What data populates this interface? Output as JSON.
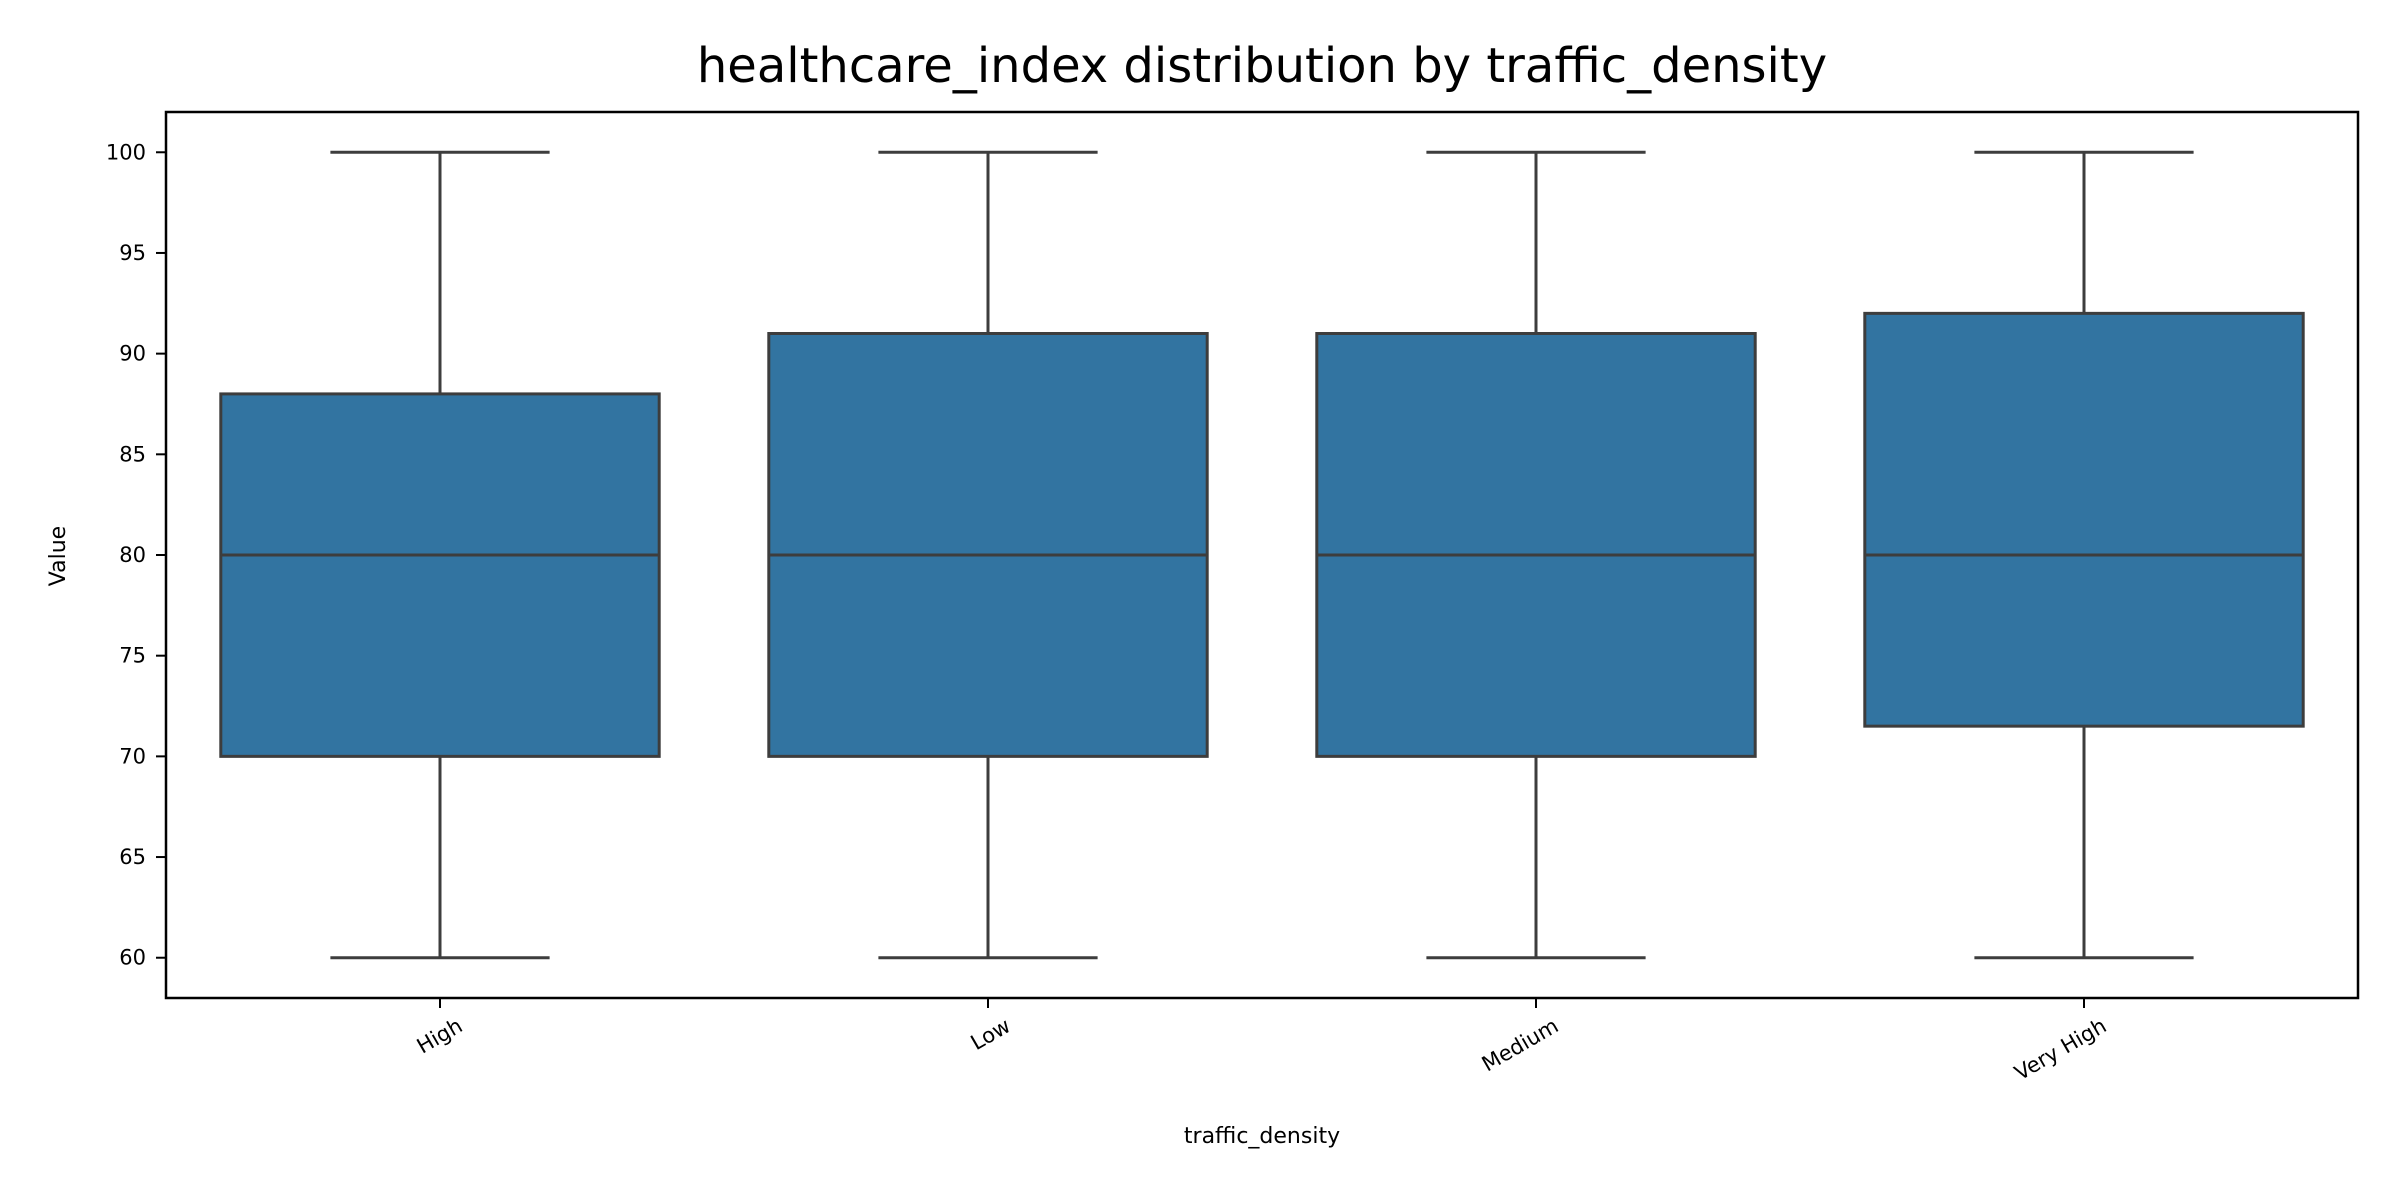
{
  "chart_data": {
    "type": "box",
    "title": "healthcare_index distribution by traffic_density",
    "xlabel": "traffic_density",
    "ylabel": "Value",
    "ylim": [
      58,
      102
    ],
    "yticks": [
      60,
      65,
      70,
      75,
      80,
      85,
      90,
      95,
      100
    ],
    "categories": [
      "High",
      "Low",
      "Medium",
      "Very High"
    ],
    "boxes": [
      {
        "category": "High",
        "whisker_low": 60,
        "q1": 70,
        "median": 80,
        "q3": 88,
        "whisker_high": 100
      },
      {
        "category": "Low",
        "whisker_low": 60,
        "q1": 70,
        "median": 80,
        "q3": 91,
        "whisker_high": 100
      },
      {
        "category": "Medium",
        "whisker_low": 60,
        "q1": 70,
        "median": 80,
        "q3": 91,
        "whisker_high": 100
      },
      {
        "category": "Very High",
        "whisker_low": 60,
        "q1": 71.5,
        "median": 80,
        "q3": 92,
        "whisker_high": 100
      }
    ],
    "grid": false,
    "box_color": "#3274a1",
    "line_color": "#3d3d3d",
    "axis_color": "#000000"
  }
}
